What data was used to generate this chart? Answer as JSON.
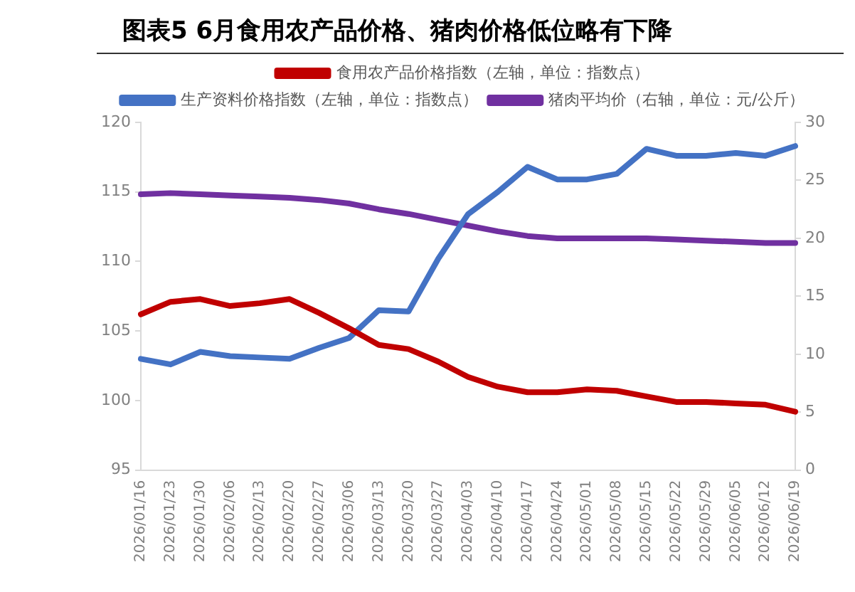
{
  "chart_data": {
    "type": "line",
    "title": "图表5 6月食用农产品价格、猪肉价格低位略有下降",
    "categories": [
      "2026/01/16",
      "2026/01/23",
      "2026/01/30",
      "2026/02/06",
      "2026/02/13",
      "2026/02/20",
      "2026/02/27",
      "2026/03/06",
      "2026/03/13",
      "2026/03/20",
      "2026/03/27",
      "2026/04/03",
      "2026/04/10",
      "2026/04/17",
      "2026/04/24",
      "2026/05/01",
      "2026/05/08",
      "2026/05/15",
      "2026/05/22",
      "2026/05/29",
      "2026/06/05",
      "2026/06/12",
      "2026/06/19"
    ],
    "series": [
      {
        "name": "食用农产品价格指数（左轴，单位：指数点）",
        "color": "#c00000",
        "values": [
          106.2,
          107.1,
          107.3,
          106.8,
          107.0,
          107.3,
          106.3,
          105.2,
          104.0,
          103.7,
          102.8,
          101.7,
          101.0,
          100.6,
          100.6,
          100.8,
          100.7,
          100.3,
          99.9,
          99.9,
          99.8,
          99.7,
          99.2
        ]
      },
      {
        "name": "生产资料价格指数（左轴，单位：指数点）",
        "color": "#4472c4",
        "values": [
          103.0,
          102.6,
          103.5,
          103.2,
          103.1,
          103.0,
          103.8,
          104.5,
          106.5,
          106.4,
          110.2,
          113.4,
          115.0,
          116.8,
          115.9,
          115.9,
          116.3,
          118.1,
          117.6,
          117.6,
          117.8,
          117.6,
          118.3
        ]
      },
      {
        "name": "猪肉平均价（右轴，单位：元/公斤）",
        "color": "#7030a0",
        "axis": "y2",
        "values": [
          23.8,
          23.9,
          23.8,
          23.7,
          23.6,
          23.5,
          23.3,
          23.0,
          22.5,
          22.1,
          21.6,
          21.1,
          20.6,
          20.2,
          20.0,
          20.0,
          20.0,
          20.0,
          19.9,
          19.8,
          19.7,
          19.6,
          19.6
        ]
      }
    ],
    "ylim": [
      95,
      120
    ],
    "yticks": [
      95,
      100,
      105,
      110,
      115,
      120
    ],
    "y2lim": [
      0,
      30
    ],
    "y2ticks": [
      0,
      5,
      10,
      15,
      20,
      25,
      30
    ],
    "grid": false,
    "legend": "top",
    "marker": "none",
    "line_style": "solid"
  }
}
